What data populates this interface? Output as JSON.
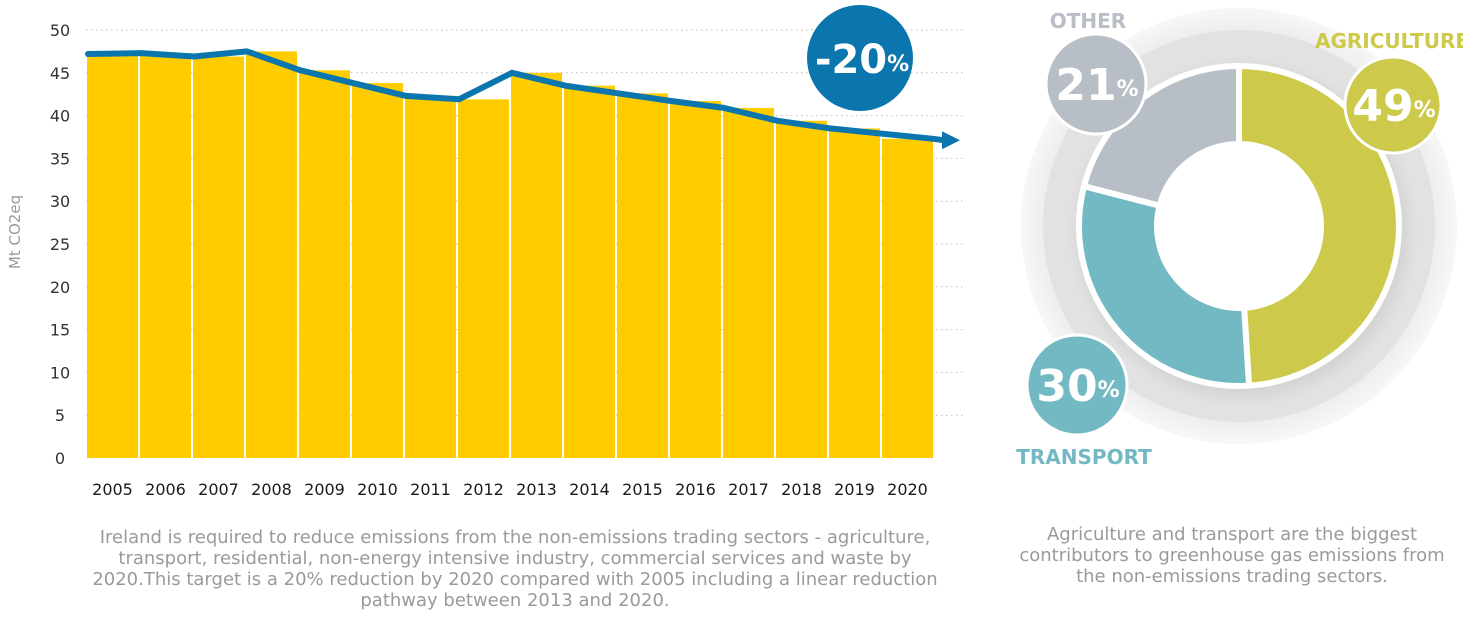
{
  "chart_data": [
    {
      "type": "bar",
      "title": "",
      "ylabel": "Mt CO2eq",
      "xlabel": "",
      "ylim": [
        0,
        50
      ],
      "yticks": [
        0,
        5,
        10,
        15,
        20,
        25,
        30,
        35,
        40,
        45,
        50
      ],
      "grid": "dotted horizontal",
      "categories": [
        "2005",
        "2006",
        "2007",
        "2008",
        "2009",
        "2010",
        "2011",
        "2012",
        "2013",
        "2014",
        "2015",
        "2016",
        "2017",
        "2018",
        "2019",
        "2020"
      ],
      "series": [
        {
          "values": [
            47.2,
            47.3,
            46.9,
            47.5,
            45.3,
            43.8,
            42.3,
            41.9,
            45.0,
            43.5,
            42.6,
            41.7,
            40.9,
            39.4,
            38.5,
            37.3
          ]
        }
      ],
      "trend_line": [
        47.2,
        47.3,
        46.9,
        47.5,
        45.3,
        43.8,
        42.3,
        41.9,
        45.0,
        43.5,
        42.6,
        41.7,
        40.9,
        39.4,
        38.5,
        37.3
      ],
      "bar_color": "#ffcc00",
      "line_color": "#0b76ad",
      "badge": {
        "number": "-20",
        "unit": "%",
        "color": "#0b76ad"
      }
    },
    {
      "type": "pie",
      "style": "donut",
      "slices": [
        {
          "label": "AGRICULTURE",
          "value": 49,
          "display": "49",
          "unit": "%",
          "color": "#cdc94a"
        },
        {
          "label": "TRANSPORT",
          "value": 30,
          "display": "30",
          "unit": "%",
          "color": "#72b9c4"
        },
        {
          "label": "OTHER",
          "value": 21,
          "display": "21",
          "unit": "%",
          "color": "#b8bec5"
        }
      ]
    }
  ],
  "captions": {
    "bar": "Ireland is required to reduce emissions from the non-emissions trading sectors - agriculture, transport, residential, non-energy intensive industry, commercial services and waste by 2020.This target is a 20% reduction by 2020 compared with 2005 including a linear reduction pathway between 2013 and 2020.",
    "pie": "Agriculture and transport are the biggest contributors to greenhouse gas emissions from the non-emissions trading sectors."
  }
}
